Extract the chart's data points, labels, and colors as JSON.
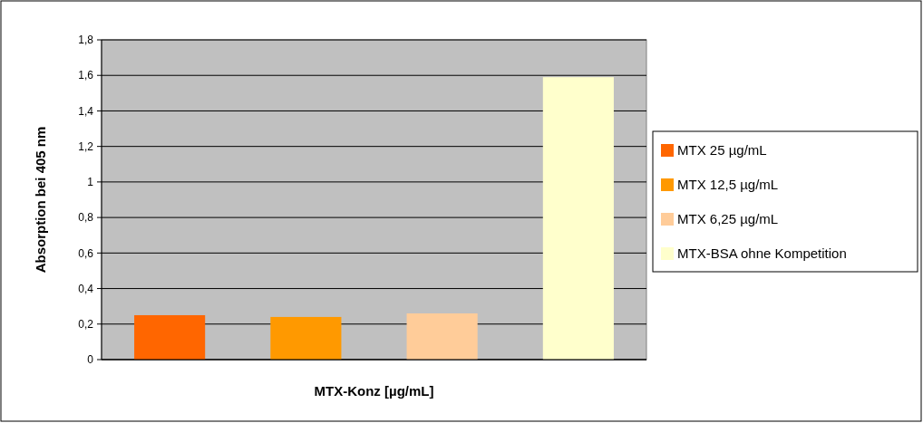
{
  "chart_data": {
    "type": "bar",
    "xlabel": "MTX-Konz [µg/mL]",
    "ylabel": "Absorption bei 405 nm",
    "categories": [
      null
    ],
    "series": [
      {
        "name": "MTX 25 µg/mL",
        "color": "#ff6600",
        "values": [
          0.25
        ]
      },
      {
        "name": "MTX 12,5 µg/mL",
        "color": "#ff9900",
        "values": [
          0.24
        ]
      },
      {
        "name": "MTX 6,25 µg/mL",
        "color": "#ffcc99",
        "values": [
          0.26
        ]
      },
      {
        "name": "MTX-BSA ohne Kompetition",
        "color": "#ffffcc",
        "values": [
          1.59
        ]
      }
    ],
    "ylim": [
      0,
      1.8
    ],
    "yticks": [
      {
        "value": 0,
        "label": "0"
      },
      {
        "value": 0.2,
        "label": "0,2"
      },
      {
        "value": 0.4,
        "label": "0,4"
      },
      {
        "value": 0.6,
        "label": "0,6"
      },
      {
        "value": 0.8,
        "label": "0,8"
      },
      {
        "value": 1,
        "label": "1"
      },
      {
        "value": 1.2,
        "label": "1,2"
      },
      {
        "value": 1.4,
        "label": "1,4"
      },
      {
        "value": 1.6,
        "label": "1,6"
      },
      {
        "value": 1.8,
        "label": "1,8"
      }
    ],
    "grid": "y",
    "legend": "right"
  }
}
